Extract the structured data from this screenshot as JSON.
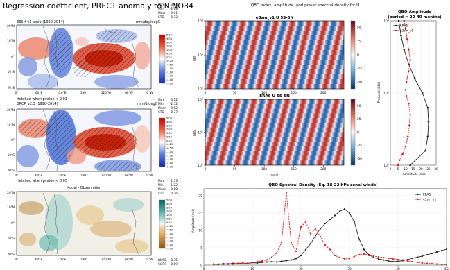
{
  "page_title": "Regression coefficient, PRECT anomaly to NINO34",
  "map_panels": [
    {
      "left_title": "E3SM v1 amip (1990-2014)",
      "right_title": "mm/day/degC",
      "stats": [
        [
          "Max",
          "3.44"
        ],
        [
          "Min",
          "-2.68"
        ],
        [
          "Mean",
          "0.01"
        ],
        [
          "STD",
          "0.72"
        ]
      ],
      "footnote": "Hatched when pvalue < 0.01",
      "colorbar_ticks": [
        "5.00",
        "4.00",
        "3.00",
        "2.00",
        "1.00",
        "0.50",
        "0.25",
        "-0.25",
        "-0.50",
        "-1.00",
        "-2.00",
        "-3.00",
        "-4.00",
        "-5.00"
      ]
    },
    {
      "left_title": "GPCP_v2.3 (1990-2014)",
      "right_title": "mm/d/degC",
      "stats": [
        [
          "Max",
          "3.12"
        ],
        [
          "Min",
          "-2.52"
        ],
        [
          "Mean",
          "0.02"
        ],
        [
          "STD",
          "0.77"
        ]
      ],
      "footnote": "Hatched when pvalue < 0.05",
      "colorbar_ticks": [
        "5.00",
        "4.00",
        "3.00",
        "2.00",
        "1.00",
        "0.50",
        "0.25",
        "-0.25",
        "-0.50",
        "-1.00",
        "-2.00",
        "-3.00",
        "-4.00",
        "-5.00"
      ]
    },
    {
      "center_title": "Model - Observation",
      "stats": [
        [
          "Max",
          "1.53"
        ],
        [
          "Min",
          "-1.22"
        ],
        [
          "Mean",
          "-0.00"
        ],
        [
          "STD",
          "0.36"
        ]
      ],
      "metrics": [
        [
          "RMSE",
          "0.35"
        ],
        [
          "CORR",
          "0.89"
        ]
      ],
      "colorbar_ticks": [
        "5.00",
        "4.00",
        "3.00",
        "2.00",
        "1.00",
        "0.50",
        "0.25",
        "-0.25",
        "-0.50",
        "-1.00",
        "-2.00",
        "-3.00",
        "-4.00",
        "-5.00"
      ]
    }
  ],
  "map_axis": {
    "lat_ticks": [
      "20°N",
      "10°N",
      "0°",
      "10°S",
      "20°S"
    ],
    "lon_ticks": [
      "0°",
      "60°E",
      "120°E",
      "180°",
      "120°W",
      "60°W",
      "0°W"
    ]
  },
  "qbo_header": "QBO index, amplitude, and power spectral density for U",
  "chart_data": [
    {
      "type": "heatmap",
      "title": "e3sm_v1 U 5S-5N",
      "ylabel": "hPa",
      "y_ticks": [
        "10^0",
        "10^1",
        "10^2"
      ],
      "x_ticks": [
        "0",
        "50",
        "100",
        "150",
        "200"
      ],
      "xlim": [
        0,
        235
      ],
      "colorbar_ticks": [
        "50",
        "25",
        "0",
        "-25",
        "-50"
      ],
      "colorbar_range": [
        -50,
        50
      ]
    },
    {
      "type": "heatmap",
      "title": "ERA5 U 5S-5N",
      "xlabel": "month",
      "ylabel": "hPa",
      "y_ticks": [
        "10^0",
        "10^1",
        "10^2"
      ],
      "x_ticks": [
        "0",
        "50",
        "100",
        "150",
        "200"
      ],
      "xlim": [
        0,
        235
      ],
      "colorbar_ticks": [
        "50",
        "25",
        "0",
        "-25",
        "-50"
      ],
      "colorbar_range": [
        -50,
        50
      ]
    },
    {
      "type": "line",
      "title": "QBO Amplitude",
      "subtitle": "(period = 20-40 months)",
      "xlabel": "Amplitude (m/s)",
      "ylabel": "Pressure (hPa)",
      "xlim": [
        0,
        30
      ],
      "x_ticks": [
        "0",
        "5",
        "10",
        "15",
        "20",
        "25",
        "30"
      ],
      "y_log": true,
      "ylim": [
        100,
        1
      ],
      "y_ticks": [
        "10^0",
        "10^1",
        "10^2"
      ],
      "legend_position": "top-left",
      "series": [
        {
          "name": "ERA5",
          "color": "#222222",
          "points": [
            [
              5.5,
              1
            ],
            [
              7,
              1.6
            ],
            [
              9,
              2.5
            ],
            [
              12,
              4
            ],
            [
              16,
              6.3
            ],
            [
              21,
              10
            ],
            [
              24.5,
              16
            ],
            [
              25,
              25
            ],
            [
              24.5,
              40
            ],
            [
              23,
              63
            ],
            [
              13,
              100
            ]
          ]
        },
        {
          "name": "e3sm_v1",
          "color": "#e31a1c",
          "points": [
            [
              9,
              1
            ],
            [
              10,
              1.3
            ],
            [
              11,
              1.8
            ],
            [
              12,
              2.5
            ],
            [
              13,
              3.5
            ],
            [
              12,
              5
            ],
            [
              10.5,
              7
            ],
            [
              10,
              9
            ],
            [
              10.5,
              11
            ],
            [
              12,
              14
            ],
            [
              13,
              20
            ],
            [
              12.5,
              28
            ],
            [
              11.5,
              40
            ],
            [
              10,
              55
            ],
            [
              8,
              70
            ],
            [
              6,
              85
            ],
            [
              5,
              100
            ]
          ]
        }
      ]
    },
    {
      "type": "line",
      "title": "QBO Spectral Density (Eq. 18-22 hPa zonal winds)",
      "ylabel": "Amplitude (m/s)",
      "xlim": [
        0,
        50
      ],
      "ylim": [
        0,
        22
      ],
      "x_ticks": [
        "0",
        "10",
        "20",
        "30",
        "40",
        "50"
      ],
      "y_ticks": [
        "0",
        "5",
        "10",
        "15",
        "20"
      ],
      "legend_position": "top-right",
      "series": [
        {
          "name": "ERA5",
          "color": "#222222",
          "x": [
            2,
            3,
            4,
            5,
            6,
            7,
            8,
            9,
            10,
            11,
            12,
            13,
            14,
            15,
            16,
            17,
            18,
            19,
            20,
            21,
            22,
            23,
            24,
            25,
            26,
            27,
            28,
            29,
            30,
            31,
            32,
            33,
            34,
            35,
            36,
            37,
            38,
            39,
            40,
            41,
            42,
            43,
            44,
            45,
            46,
            47,
            48,
            49,
            50
          ],
          "values": [
            0.3,
            0.2,
            0.4,
            0.3,
            0.5,
            0.4,
            0.6,
            0.5,
            0.7,
            0.6,
            0.8,
            0.9,
            1.0,
            0.9,
            1.1,
            1.3,
            1.5,
            1.9,
            2.8,
            4.5,
            6.2,
            8.5,
            10.5,
            12,
            13.2,
            14.3,
            15.5,
            16.2,
            15,
            12.5,
            7.5,
            4.5,
            3.0,
            2.2,
            1.8,
            1.5,
            1.2,
            1.0,
            1.1,
            1.3,
            1.6,
            2.0,
            2.3,
            2.6,
            3.0,
            3.4,
            3.8,
            4.2,
            4.6
          ]
        },
        {
          "name": "e3sm_v1",
          "color": "#e31a1c",
          "x": [
            2,
            3,
            4,
            5,
            6,
            7,
            8,
            9,
            10,
            11,
            12,
            13,
            14,
            15,
            16,
            17,
            18,
            19,
            20,
            21,
            22,
            23,
            24,
            25,
            26,
            27,
            28,
            29,
            30,
            31,
            32,
            33,
            34,
            35,
            36,
            37,
            38,
            39,
            40,
            41,
            42,
            43,
            44,
            45,
            46,
            47,
            48,
            49,
            50
          ],
          "values": [
            0.2,
            0.3,
            0.2,
            0.4,
            0.3,
            0.5,
            0.6,
            0.5,
            0.8,
            1.0,
            1.2,
            1.5,
            2.3,
            3.5,
            6.5,
            21,
            6.5,
            4.0,
            11.0,
            12.5,
            9.0,
            10.5,
            8.2,
            5.8,
            4.5,
            2.8,
            2.2,
            1.8,
            1.9,
            2.5,
            3.0,
            3.2,
            2.8,
            2.6,
            2.4,
            2.2,
            2.0,
            1.8,
            1.6,
            1.5,
            1.2,
            1.0,
            0.8,
            0.6,
            0.5,
            0.4,
            0.3,
            0.2,
            0.2
          ]
        }
      ]
    }
  ]
}
